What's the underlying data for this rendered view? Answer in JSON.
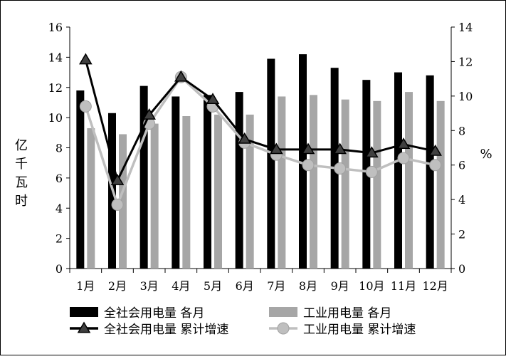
{
  "chart_data": {
    "type": "bar",
    "categories": [
      "1月",
      "2月",
      "3月",
      "4月",
      "5月",
      "6月",
      "7月",
      "8月",
      "9月",
      "10月",
      "11月",
      "12月"
    ],
    "series": [
      {
        "name": "全社会用电量 各月",
        "type": "bar",
        "axis": "left",
        "color": "#000000",
        "values": [
          11.8,
          10.3,
          12.1,
          11.4,
          11.5,
          11.7,
          13.9,
          14.2,
          13.3,
          12.5,
          13.0,
          12.8
        ]
      },
      {
        "name": "工业用电量 各月",
        "type": "bar",
        "axis": "left",
        "color": "#a6a6a6",
        "values": [
          9.3,
          8.9,
          9.6,
          10.1,
          10.2,
          10.2,
          11.4,
          11.5,
          11.2,
          11.1,
          11.7,
          11.1
        ]
      },
      {
        "name": "全社会用电量 累计增速",
        "type": "line",
        "axis": "right",
        "color": "#000000",
        "marker": "triangle",
        "values": [
          12.1,
          5.1,
          8.9,
          11.1,
          9.8,
          7.5,
          6.9,
          6.9,
          6.9,
          6.7,
          7.2,
          6.8
        ]
      },
      {
        "name": "工业用电量 累计增速",
        "type": "line",
        "axis": "right",
        "color": "#bfbfbf",
        "marker": "circle",
        "values": [
          9.4,
          3.7,
          8.4,
          11.1,
          9.4,
          7.3,
          6.6,
          6.0,
          5.8,
          5.6,
          6.4,
          6.0
        ]
      }
    ],
    "ylabel": "亿千瓦时",
    "y2label": "%",
    "ylim": [
      0,
      16
    ],
    "y2lim": [
      0,
      14
    ],
    "yticks": [
      "0",
      "2",
      "4",
      "6",
      "8",
      "10",
      "12",
      "14",
      "16"
    ],
    "y2ticks": [
      "0",
      "2",
      "4",
      "6",
      "8",
      "10",
      "12",
      "14"
    ],
    "grid": false,
    "legend_position": "bottom"
  }
}
